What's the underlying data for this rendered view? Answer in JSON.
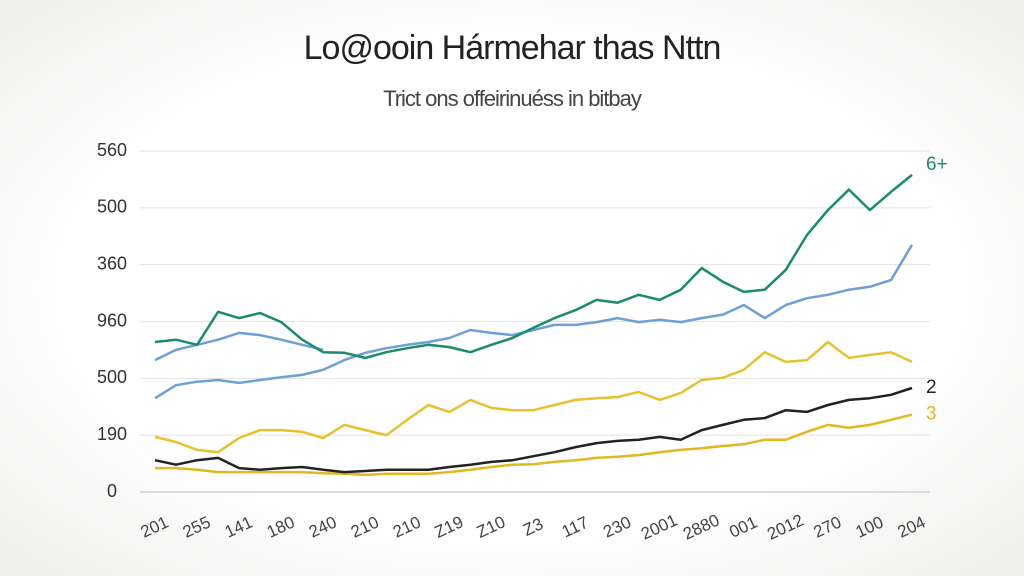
{
  "chart_data": {
    "type": "line",
    "title": "Lo@ooin Hármehar thas Nttn",
    "subtitle": "Trict ons offeirinuéss in bitbay",
    "categories": [
      "201",
      null,
      "255",
      null,
      "141",
      null,
      "180",
      null,
      "240",
      null,
      "210",
      null,
      "210",
      null,
      "Z19",
      null,
      "Z10",
      null,
      "Z3",
      null,
      "117",
      null,
      "230",
      null,
      "2001",
      null,
      "2880",
      null,
      "001",
      null,
      "2012",
      null,
      "270",
      null,
      "100",
      null,
      "204"
    ],
    "ylim": [
      0,
      600
    ],
    "yticks": [
      0,
      {
        "value": 100,
        "label": "190"
      },
      {
        "value": 200,
        "label": "500"
      },
      {
        "value": 300,
        "label": "960"
      },
      {
        "value": 400,
        "label": "360"
      },
      {
        "value": 500,
        "label": "500"
      },
      {
        "value": 600,
        "label": "560"
      }
    ],
    "grid": true,
    "series": [
      {
        "color": "#6f9fd8",
        "values": [
          232,
          250,
          259,
          268,
          280,
          276,
          268,
          259,
          250,
          null,
          null,
          null,
          null,
          null,
          null,
          null,
          null,
          null,
          null,
          null,
          null,
          null,
          null,
          null,
          null,
          null,
          null,
          null,
          null,
          null,
          null,
          null,
          null,
          null,
          null,
          null,
          null
        ]
      },
      {
        "color": "#6f9fd8",
        "values": [
          165,
          188,
          194,
          197,
          192,
          197,
          202,
          206,
          215,
          232,
          245,
          253,
          259,
          264,
          271,
          285,
          280,
          276,
          285,
          294,
          294,
          299,
          306,
          299,
          303,
          299,
          306,
          312,
          329,
          306,
          329,
          341,
          347,
          356,
          361,
          373,
          435
        ]
      },
      {
        "color": "#e8c12e",
        "values": [
          97,
          88,
          74,
          70,
          95,
          109,
          109,
          106,
          95,
          118,
          109,
          100,
          127,
          153,
          141,
          162,
          148,
          144,
          144,
          153,
          162,
          165,
          167,
          176,
          162,
          174,
          197,
          201,
          215,
          246,
          229,
          232,
          264,
          236,
          241,
          246,
          229
        ]
      },
      {
        "name": "3",
        "color": "#e2b820",
        "values": [
          42,
          42,
          39,
          35,
          35,
          35,
          35,
          35,
          33,
          32,
          30,
          32,
          32,
          32,
          35,
          39,
          44,
          48,
          49,
          53,
          56,
          60,
          62,
          65,
          70,
          74,
          77,
          81,
          84,
          92,
          92,
          106,
          118,
          113,
          118,
          127,
          136
        ]
      },
      {
        "name": "2",
        "color": "#222222",
        "values": [
          56,
          48,
          56,
          60,
          42,
          39,
          42,
          44,
          39,
          35,
          37,
          39,
          39,
          39,
          44,
          48,
          53,
          56,
          63,
          70,
          79,
          86,
          90,
          92,
          97,
          92,
          109,
          118,
          127,
          130,
          144,
          141,
          153,
          162,
          165,
          171,
          183
        ]
      },
      {
        "name": "6+",
        "color": "#1a8c6a",
        "values": [
          264,
          268,
          259,
          317,
          306,
          315,
          299,
          268,
          246,
          245,
          236,
          246,
          253,
          259,
          255,
          246,
          259,
          271,
          289,
          306,
          320,
          338,
          333,
          347,
          338,
          356,
          394,
          370,
          352,
          356,
          391,
          452,
          496,
          532,
          496,
          528,
          558
        ]
      }
    ]
  }
}
